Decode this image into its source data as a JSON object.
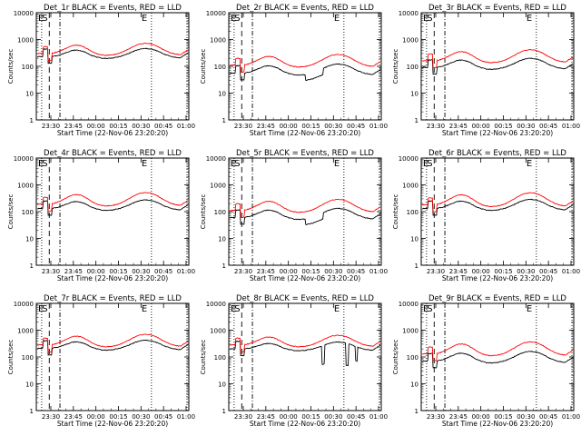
{
  "chart_data": {
    "type": "line",
    "shared": {
      "xlabel": "Start Time (22-Nov-06 23:20:20)",
      "ylabel": "Counts/sec",
      "x_ticks": [
        "23:30",
        "23:45",
        "00:00",
        "00:15",
        "00:30",
        "00:45",
        "01:00"
      ],
      "y_ticks": [
        "1",
        "10",
        "100",
        "1000",
        "10000"
      ],
      "y_scale": "log",
      "ylim": [
        1,
        10000
      ],
      "series_colors": {
        "events": "#000000",
        "lld": "#ff0000"
      },
      "markers": {
        "E_left": "E",
        "S": "S",
        "E_right": "E"
      }
    },
    "panels": [
      {
        "title": "Det_1r BLACK = Events, RED = LLD",
        "x_start_label": "23:30",
        "base_black": 230,
        "base_red": 300,
        "hump_black": 2.0,
        "hump_red": 2.4,
        "variant": "smooth"
      },
      {
        "title": "Det_2r BLACK = Events, RED = LLD",
        "x_start_label": "23:30",
        "base_black": 55,
        "base_red": 110,
        "hump_black": 2.2,
        "hump_red": 2.5,
        "variant": "dips"
      },
      {
        "title": "Det_3r BLACK = Events, RED = LLD",
        "x_start_label": "23:30",
        "base_black": 90,
        "base_red": 160,
        "hump_black": 2.2,
        "hump_red": 2.6,
        "variant": "smooth"
      },
      {
        "title": "Det_4r BLACK = Events, RED = LLD",
        "x_start_label": "23:30",
        "base_black": 130,
        "base_red": 190,
        "hump_black": 2.1,
        "hump_red": 2.7,
        "variant": "smooth"
      },
      {
        "title": "Det_5r BLACK = Events, RED = LLD",
        "x_start_label": "23:30",
        "base_black": 60,
        "base_red": 110,
        "hump_black": 2.2,
        "hump_red": 2.6,
        "variant": "dips"
      },
      {
        "title": "Det_6r BLACK = Events, RED = LLD",
        "x_start_label": "23:30",
        "base_black": 130,
        "base_red": 180,
        "hump_black": 2.2,
        "hump_red": 2.8,
        "variant": "smooth"
      },
      {
        "title": "Det_7r BLACK = Events, RED = LLD",
        "x_start_label": "23:30",
        "base_black": 210,
        "base_red": 280,
        "hump_black": 2.0,
        "hump_red": 2.5,
        "variant": "smooth"
      },
      {
        "title": "Det_8r BLACK = Events, RED = LLD",
        "x_start_label": "23:30",
        "base_black": 200,
        "base_red": 280,
        "hump_black": 1.8,
        "hump_red": 2.3,
        "variant": "spikes"
      },
      {
        "title": "Det_9r BLACK = Events, RED = LLD",
        "x_start_label": "23:30",
        "base_black": 70,
        "base_red": 130,
        "hump_black": 2.3,
        "hump_red": 2.8,
        "variant": "smooth"
      }
    ]
  }
}
